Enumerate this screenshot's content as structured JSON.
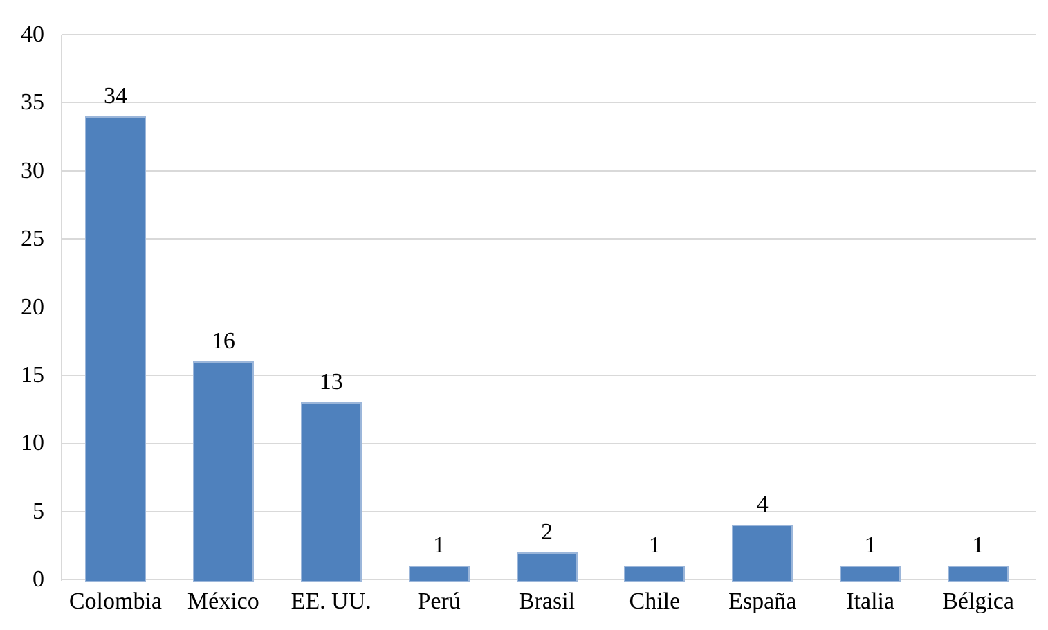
{
  "chart_data": {
    "type": "bar",
    "title": "",
    "xlabel": "",
    "ylabel": "",
    "categories": [
      "Colombia",
      "México",
      "EE. UU.",
      "Perú",
      "Brasil",
      "Chile",
      "España",
      "Italia",
      "Bélgica"
    ],
    "values": [
      34,
      16,
      13,
      1,
      2,
      1,
      4,
      1,
      1
    ],
    "data_labels_visible": true,
    "ylim": [
      0,
      40
    ],
    "yticks": [
      0,
      5,
      10,
      15,
      20,
      25,
      30,
      35,
      40
    ],
    "grid": "horizontal",
    "legend": "none",
    "colors": {
      "bar_fill": "#4f81bd",
      "bar_border": "#9bb6da",
      "gridline": "#d9d9d9",
      "text": "#000000",
      "background": "#ffffff"
    }
  }
}
